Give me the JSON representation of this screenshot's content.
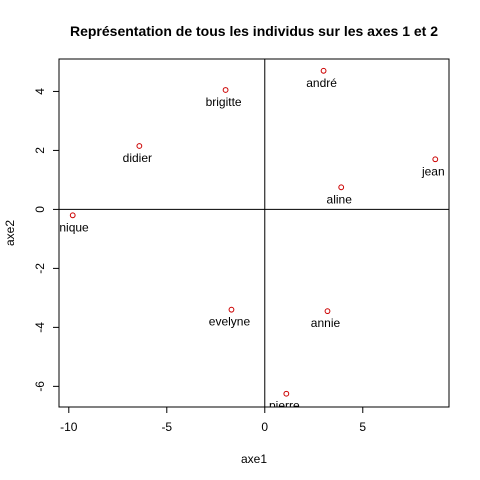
{
  "chart_data": {
    "type": "scatter",
    "title": "Représentation de tous les individus sur les axes 1 et 2",
    "xlabel": "axe1",
    "ylabel": "axe2",
    "xlim": [
      -10.5,
      9.4
    ],
    "ylim": [
      -6.7,
      5.1
    ],
    "xticks": [
      -10,
      -5,
      0,
      5
    ],
    "yticks": [
      -6,
      -4,
      -2,
      0,
      2,
      4
    ],
    "reference_lines": {
      "x": 0,
      "y": 0
    },
    "grid": false,
    "point_color": "#cc0000",
    "points": [
      {
        "label": "andré",
        "x": 3.0,
        "y": 4.7
      },
      {
        "label": "brigitte",
        "x": -2.0,
        "y": 4.05
      },
      {
        "label": "didier",
        "x": -6.4,
        "y": 2.15
      },
      {
        "label": "jean",
        "x": 8.7,
        "y": 1.7
      },
      {
        "label": "aline",
        "x": 3.9,
        "y": 0.75
      },
      {
        "label": "onique",
        "x": -9.8,
        "y": -0.2
      },
      {
        "label": "evelyne",
        "x": -1.7,
        "y": -3.4
      },
      {
        "label": "annie",
        "x": 3.2,
        "y": -3.45
      },
      {
        "label": "pierre",
        "x": 1.1,
        "y": -6.25
      }
    ]
  }
}
